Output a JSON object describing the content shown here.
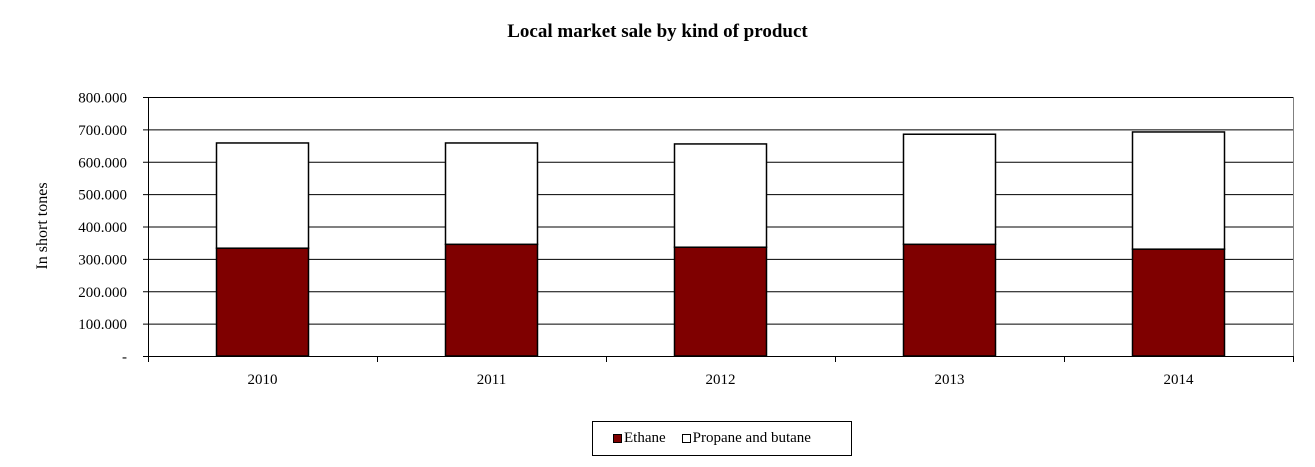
{
  "chart_data": {
    "type": "bar",
    "stacked": true,
    "title": "Local market sale by kind of product",
    "xlabel": "",
    "ylabel": "In short tones",
    "ylim": [
      0,
      800000
    ],
    "yticks": [
      0,
      100000,
      200000,
      300000,
      400000,
      500000,
      600000,
      700000,
      800000
    ],
    "ytick_labels": [
      "-",
      "100.000",
      "200.000",
      "300.000",
      "400.000",
      "500.000",
      "600.000",
      "700.000",
      "800.000"
    ],
    "categories": [
      "2010",
      "2011",
      "2012",
      "2013",
      "2014"
    ],
    "series": [
      {
        "name": "Ethane",
        "color": "#7f0000",
        "values": [
          333000,
          345000,
          336000,
          345000,
          330000
        ]
      },
      {
        "name": "Propane and butane",
        "color": "#ffffff",
        "values": [
          325000,
          313000,
          319000,
          340000,
          362000
        ]
      }
    ],
    "grid": true,
    "legend_position": "bottom"
  }
}
